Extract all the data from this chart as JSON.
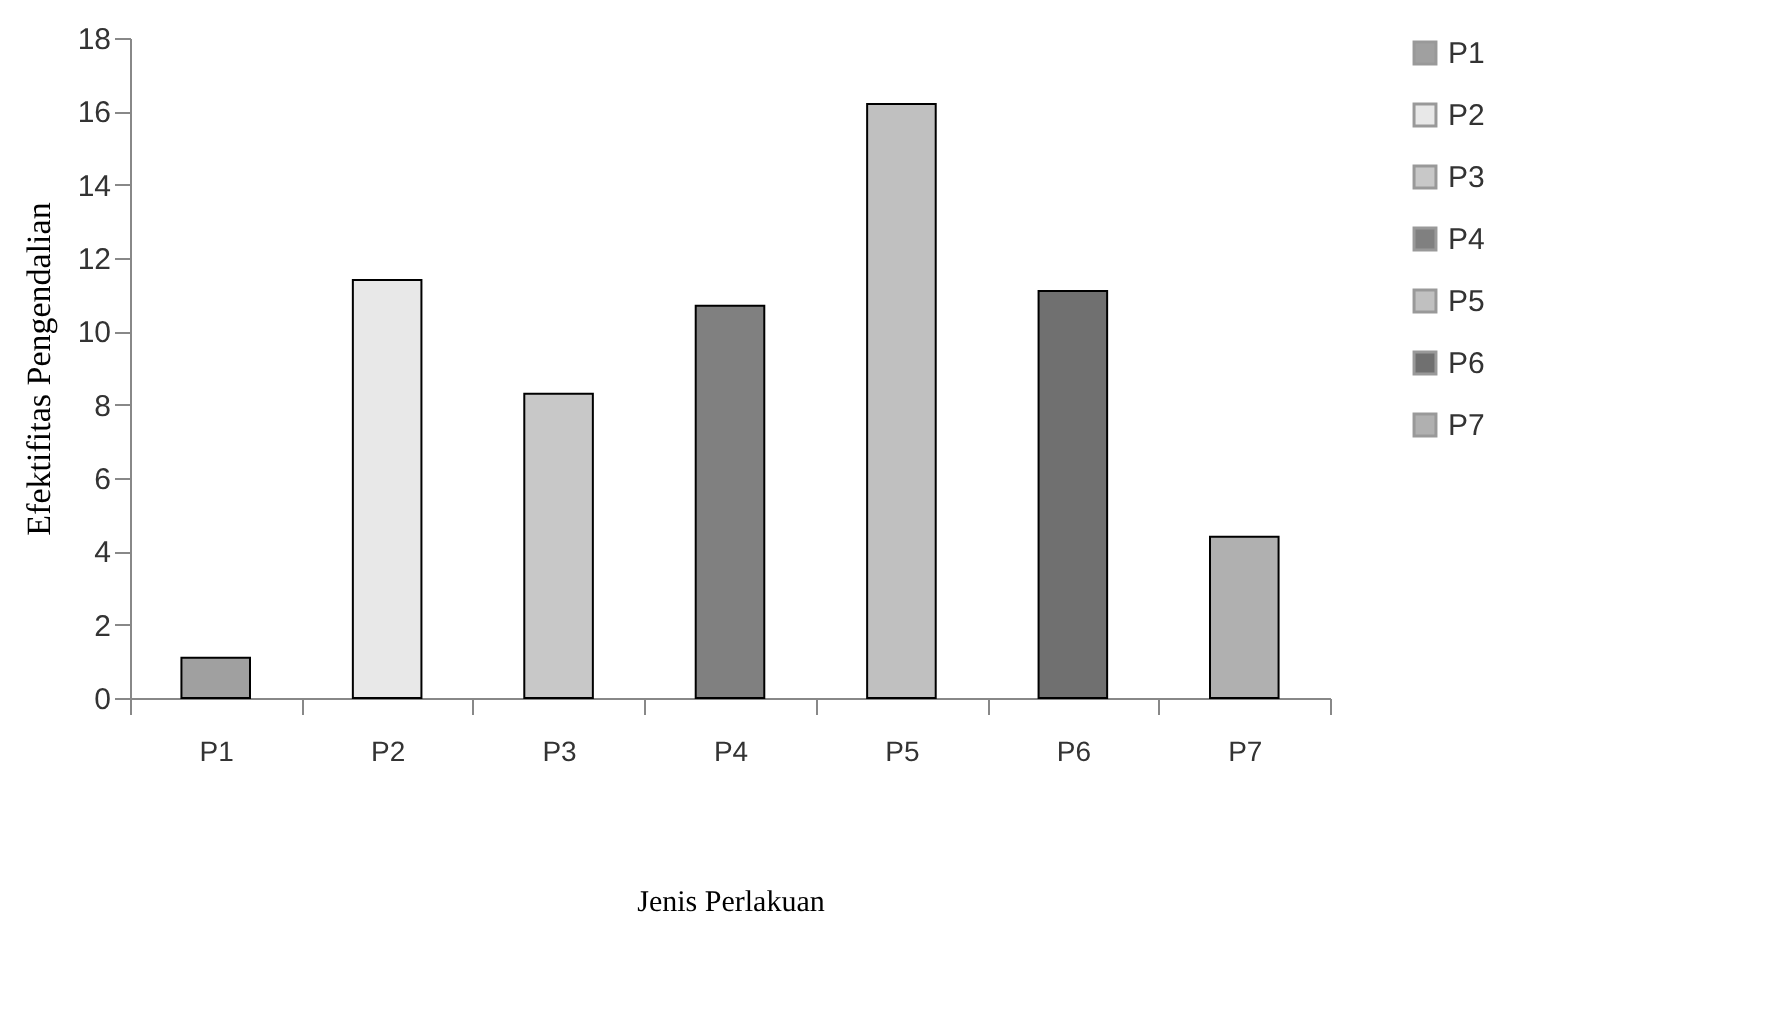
{
  "chart_data": {
    "type": "bar",
    "xlabel": "Jenis Perlakuan",
    "ylabel": "Efektifitas Pengendalian",
    "categories": [
      "P1",
      "P2",
      "P3",
      "P4",
      "P5",
      "P6",
      "P7"
    ],
    "series": [
      {
        "name": "P1",
        "color": "#a0a0a0",
        "values": [
          1.1,
          null,
          null,
          null,
          null,
          null,
          null
        ]
      },
      {
        "name": "P2",
        "color": "#e8e8e8",
        "values": [
          null,
          11.4,
          null,
          null,
          null,
          null,
          null
        ]
      },
      {
        "name": "P3",
        "color": "#c8c8c8",
        "values": [
          null,
          null,
          8.3,
          null,
          null,
          null,
          null
        ]
      },
      {
        "name": "P4",
        "color": "#808080",
        "values": [
          null,
          null,
          null,
          10.7,
          null,
          null,
          null
        ]
      },
      {
        "name": "P5",
        "color": "#c0c0c0",
        "values": [
          null,
          null,
          null,
          null,
          16.2,
          null,
          null
        ]
      },
      {
        "name": "P6",
        "color": "#707070",
        "values": [
          null,
          null,
          null,
          null,
          null,
          11.1,
          null
        ]
      },
      {
        "name": "P7",
        "color": "#b0b0b0",
        "values": [
          null,
          null,
          null,
          null,
          null,
          null,
          4.4
        ]
      }
    ],
    "ylim": [
      0,
      18
    ],
    "yticks": [
      0,
      2,
      4,
      6,
      8,
      10,
      12,
      14,
      16,
      18
    ],
    "grid": false,
    "legend": "right"
  }
}
